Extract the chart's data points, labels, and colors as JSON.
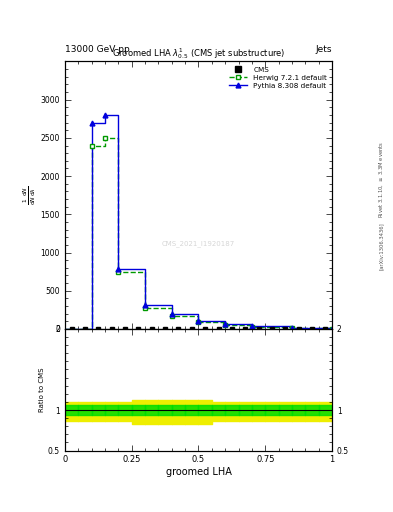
{
  "title": "Groomed LHA $\\lambda^{1}_{0.5}$ (CMS jet substructure)",
  "header_left": "13000 GeV pp",
  "header_right": "Jets",
  "xlabel": "groomed LHA",
  "ylabel_main": "$\\frac{1}{\\mathrm{d}N}\\frac{\\mathrm{d}N}{\\mathrm{d}\\lambda}$",
  "ylabel_ratio": "Ratio to CMS",
  "right_label_top": "Rivet 3.1.10, $\\geq$ 3.3M events",
  "right_label_bot": "[arXiv:1306.3436]",
  "watermark": "CMS_2021_I1920187",
  "herwig_x": [
    0.0,
    0.1,
    0.15,
    0.2,
    0.3,
    0.4,
    0.5,
    0.6,
    0.7,
    0.85,
    1.0
  ],
  "herwig_y": [
    0,
    2400,
    2500,
    750,
    280,
    175,
    90,
    55,
    30,
    8,
    2
  ],
  "pythia_x": [
    0.0,
    0.1,
    0.15,
    0.2,
    0.3,
    0.4,
    0.5,
    0.6,
    0.7,
    0.85,
    1.0
  ],
  "pythia_y": [
    0,
    2700,
    2800,
    780,
    310,
    200,
    100,
    60,
    35,
    10,
    2
  ],
  "cms_x": [
    0.025,
    0.075,
    0.125,
    0.175,
    0.225,
    0.275,
    0.325,
    0.375,
    0.425,
    0.475,
    0.525,
    0.575,
    0.625,
    0.675,
    0.725,
    0.775,
    0.825,
    0.875,
    0.925,
    0.975
  ],
  "cms_y": [
    2,
    2,
    2,
    2,
    2,
    2,
    2,
    2,
    2,
    2,
    2,
    2,
    2,
    2,
    2,
    2,
    2,
    2,
    2,
    2
  ],
  "ratio_x_edges": [
    0.0,
    0.05,
    0.1,
    0.15,
    0.2,
    0.25,
    0.3,
    0.35,
    0.4,
    0.45,
    0.5,
    0.55,
    0.6,
    0.65,
    0.7,
    0.75,
    0.8,
    0.85,
    0.9,
    0.95,
    1.0
  ],
  "ratio_green_low": 0.94,
  "ratio_green_high": 1.06,
  "ratio_yellow_low_default": 0.86,
  "ratio_yellow_high_default": 1.1,
  "ratio_yellow_low_mid": 0.83,
  "ratio_yellow_high_mid": 1.12,
  "cms_color": "#000000",
  "herwig_color": "#009900",
  "pythia_color": "#0000dd",
  "green_band": "#00dd00",
  "yellow_band": "#eeee00",
  "xlim": [
    0,
    1
  ],
  "ylim_main": [
    0,
    3500
  ],
  "ylim_ratio": [
    0.5,
    2.0
  ]
}
